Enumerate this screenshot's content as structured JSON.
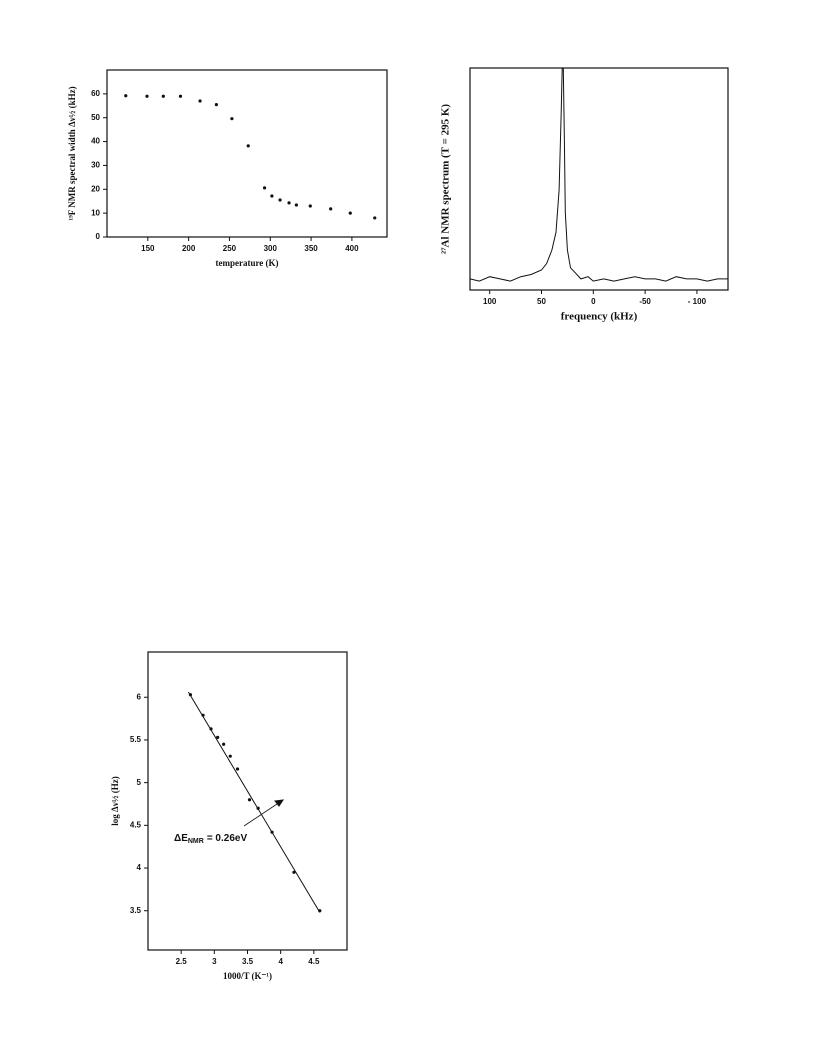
{
  "chart_data": [
    {
      "type": "scatter",
      "x_label": "temperature (K)",
      "y_label": "¹⁹F NMR spectral width Δν½ (kHz)",
      "x": [
        123,
        149,
        169,
        190,
        214,
        234,
        253,
        273,
        293,
        302,
        312,
        323,
        332,
        349,
        374,
        398,
        428
      ],
      "y": [
        59.2,
        59,
        59,
        59,
        57,
        55.5,
        49.6,
        38.2,
        20.6,
        17.2,
        15.5,
        14.3,
        13.4,
        13,
        11.8,
        10,
        8
      ],
      "xlim": [
        100,
        443
      ],
      "ylim": [
        0,
        70
      ],
      "xticks": [
        150,
        200,
        250,
        300,
        350,
        400
      ],
      "yticks": [
        0,
        10,
        20,
        30,
        40,
        50,
        60
      ],
      "color": "#111111"
    },
    {
      "type": "line",
      "x_label": "frequency (kHz)",
      "y_label": "²⁷Al NMR spectrum (T = 295 K)",
      "x": [
        119,
        110,
        100,
        90,
        80,
        70,
        60,
        50,
        45,
        40,
        36,
        33,
        31,
        30,
        29,
        28,
        27,
        25,
        22,
        18,
        12,
        5,
        0,
        -10,
        -20,
        -30,
        -40,
        -50,
        -60,
        -70,
        -80,
        -90,
        -100,
        -110,
        -120,
        -130
      ],
      "values": [
        5,
        4,
        6,
        5,
        4,
        6,
        7,
        9,
        12,
        18,
        26,
        45,
        80,
        100,
        100,
        70,
        35,
        18,
        10,
        8,
        5,
        6,
        4,
        5,
        4,
        5,
        6,
        5,
        5,
        4,
        6,
        5,
        5,
        4,
        5,
        5
      ],
      "xlim": [
        119,
        -130
      ],
      "ylim": [
        0,
        100
      ],
      "xticks": [
        100,
        50,
        0,
        -50,
        {
          "value": -100,
          "label": "- 100"
        }
      ],
      "color": "#111111"
    },
    {
      "type": "scatter",
      "x_label": "1000/T (K⁻¹)",
      "y_label": "log Δν½ (Hz)",
      "x": [
        2.64,
        2.83,
        2.95,
        3.05,
        3.14,
        3.24,
        3.35,
        3.53,
        3.66,
        3.87,
        4.2,
        4.59
      ],
      "y": [
        6.03,
        5.79,
        5.63,
        5.53,
        5.45,
        5.31,
        5.16,
        4.8,
        4.7,
        4.42,
        3.95,
        3.5
      ],
      "fit": {
        "x": [
          2.61,
          4.59
        ],
        "y": [
          6.06,
          3.48
        ]
      },
      "annotation": [
        "ΔE",
        "NMR",
        "= 0.26eV"
      ],
      "xlim": [
        2,
        5
      ],
      "ylim": [
        3.04,
        6.53
      ],
      "xticks": [
        2.5,
        3,
        3.5,
        4,
        4.5
      ],
      "yticks": [
        3.5,
        4,
        4.5,
        5,
        5.5,
        6
      ],
      "color": "#111111"
    }
  ]
}
